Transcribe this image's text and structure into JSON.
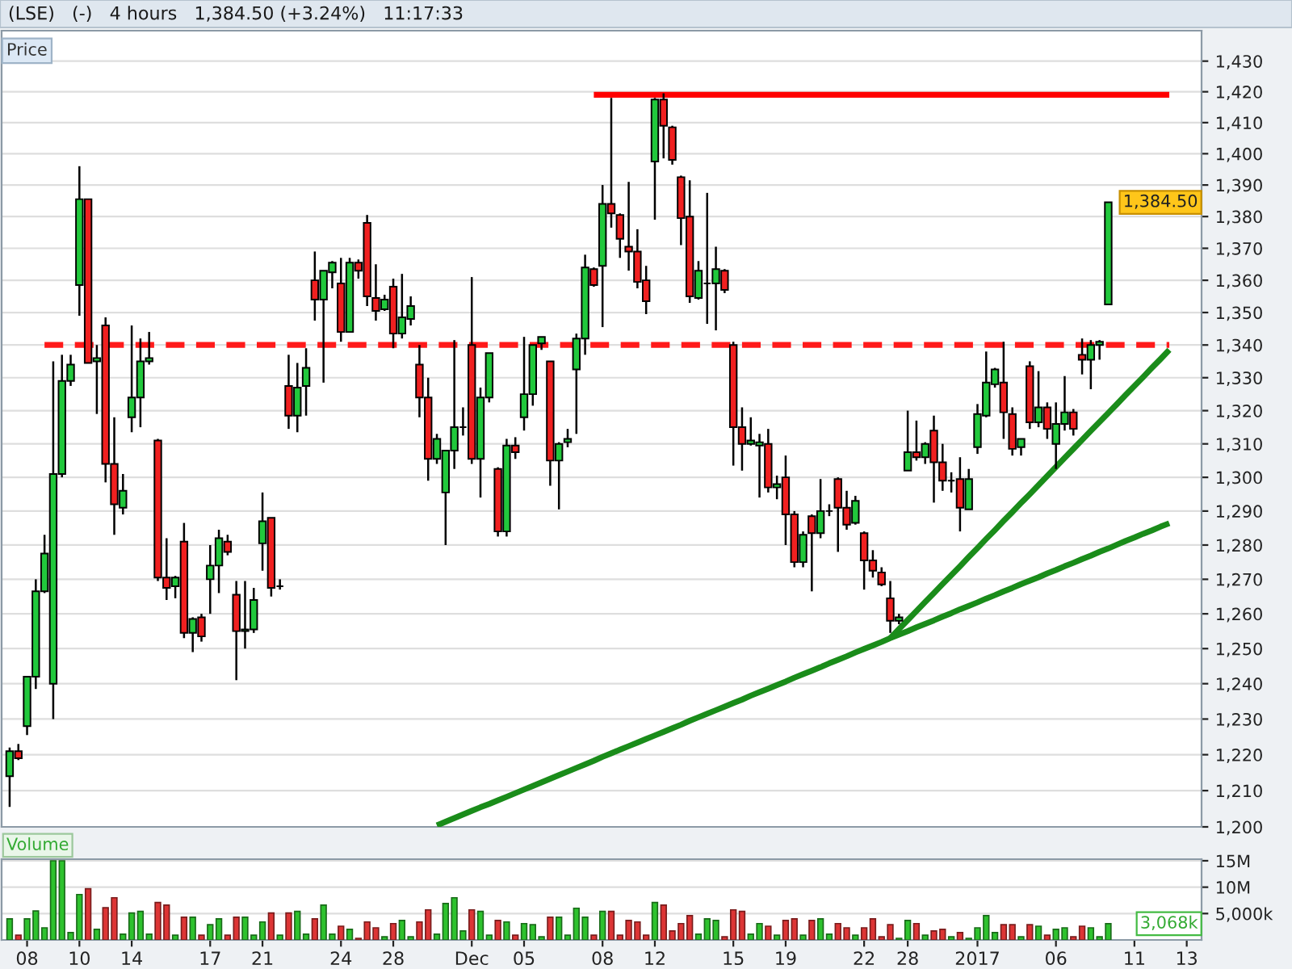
{
  "chart_data": [
    {
      "type": "candlestick",
      "title": "(LSE)   (-)   4 hours   1,384.50 (+3.24%)   11:17:33",
      "categories": [
        null,
        null,
        null,
        null,
        null,
        null,
        null,
        null,
        null,
        null,
        null,
        null,
        null,
        null,
        null,
        null,
        null,
        null,
        null,
        null,
        null,
        null,
        null,
        null,
        null,
        null,
        null,
        null,
        null,
        null,
        null,
        null,
        null,
        null,
        null,
        null,
        null,
        null,
        null,
        null,
        null,
        null,
        null,
        null,
        null,
        null,
        null,
        null,
        null,
        null,
        null,
        null,
        null,
        null,
        null,
        null,
        null,
        null,
        null,
        null,
        null,
        null,
        null,
        null,
        null,
        null,
        null,
        null,
        null,
        null,
        null,
        null,
        null,
        null,
        null,
        null,
        null,
        null,
        null,
        null,
        null,
        null,
        null,
        null,
        null,
        null,
        null,
        null,
        null,
        null,
        null,
        null,
        null,
        null,
        null,
        null,
        null,
        null,
        null,
        null,
        null,
        null,
        null,
        null,
        null,
        null,
        null,
        null,
        null,
        null,
        null,
        null,
        null,
        null,
        null,
        null,
        null,
        null,
        null,
        null,
        null,
        null,
        null,
        null,
        null,
        null,
        null,
        null,
        null,
        null,
        null,
        null,
        null,
        null,
        null,
        null,
        null
      ],
      "ohlc": [
        [
          1214,
          1222,
          1205.5,
          1221
        ],
        [
          1221,
          1223,
          1218.5,
          1219
        ],
        [
          1228,
          1242,
          1225.5,
          1242
        ],
        [
          1242,
          1270,
          1238.5,
          1266.5
        ],
        [
          1266.5,
          1283,
          1266,
          1277.5
        ],
        [
          1240,
          1335,
          1230,
          1301
        ],
        [
          1301,
          1337,
          1300,
          1329
        ],
        [
          1329,
          1337,
          1327.5,
          1334
        ],
        [
          1358.5,
          1396,
          1349,
          1385.5
        ],
        [
          1385.5,
          1385.5,
          1334.5,
          1334.5
        ],
        [
          1335,
          1340,
          1319,
          1336
        ],
        [
          1346,
          1348.5,
          1298.5,
          1304
        ],
        [
          1304,
          1318,
          1283,
          1292
        ],
        [
          1291,
          1301,
          1289,
          1296
        ],
        [
          1318,
          1346,
          1313.5,
          1324
        ],
        [
          1324,
          1342,
          1315,
          1335
        ],
        [
          1335,
          1344,
          1334,
          1336
        ],
        [
          1311,
          1311.5,
          1269.5,
          1270.5
        ],
        [
          1270.5,
          1282,
          1264,
          1267.5
        ],
        [
          1268,
          1271,
          1264.5,
          1270.5
        ],
        [
          1281,
          1286.5,
          1253,
          1254.5
        ],
        [
          1254.5,
          1259,
          1249,
          1258.5
        ],
        [
          1259,
          1260,
          1252,
          1253.5
        ],
        [
          1270,
          1280,
          1260,
          1274
        ],
        [
          1274,
          1284.5,
          1266,
          1282
        ],
        [
          1281,
          1283,
          1277,
          1278
        ],
        [
          1265.5,
          1269.5,
          1241,
          1255
        ],
        [
          1255,
          1269.5,
          1250,
          1255.5
        ],
        [
          1255.5,
          1267.5,
          1254.5,
          1264
        ],
        [
          1280.5,
          1295.5,
          1272.5,
          1287
        ],
        [
          1288,
          1288,
          1265,
          1267.5
        ],
        [
          1268,
          1270,
          1267,
          1268
        ],
        [
          1327.5,
          1337,
          1314.5,
          1318.5
        ],
        [
          1318.5,
          1334.5,
          1313.5,
          1327
        ],
        [
          1327.5,
          1339,
          1318.5,
          1333
        ],
        [
          1360,
          1369,
          1347.5,
          1354
        ],
        [
          1354,
          1363,
          1328.5,
          1363
        ],
        [
          1362.5,
          1366,
          1357.5,
          1365.5
        ],
        [
          1359,
          1367,
          1341,
          1344
        ],
        [
          1344,
          1367,
          1344,
          1365.5
        ],
        [
          1365.5,
          1366.5,
          1360.5,
          1363
        ],
        [
          1378,
          1380.5,
          1352,
          1355
        ],
        [
          1354.5,
          1365,
          1347.5,
          1350.5
        ],
        [
          1351,
          1355.5,
          1350.5,
          1354
        ],
        [
          1358,
          1360.5,
          1339,
          1343.5
        ],
        [
          1343.5,
          1362,
          1342,
          1348.5
        ],
        [
          1348,
          1355,
          1346,
          1352
        ],
        [
          1334,
          1340,
          1318,
          1324
        ],
        [
          1324,
          1330,
          1299,
          1305.5
        ],
        [
          1305.5,
          1313,
          1304,
          1311.5
        ],
        [
          1295.5,
          1308,
          1280,
          1308
        ],
        [
          1308,
          1341.5,
          1302.5,
          1315
        ],
        [
          1315,
          1321,
          1312.5,
          1315
        ],
        [
          1340,
          1361,
          1304,
          1305.5
        ],
        [
          1305.5,
          1327,
          1294,
          1324
        ],
        [
          1324,
          1337.5,
          1322.5,
          1337.5
        ],
        [
          1302.5,
          1303,
          1282.5,
          1284
        ],
        [
          1284,
          1311.5,
          1282.5,
          1309.5
        ],
        [
          1309.5,
          1312,
          1305.5,
          1307.5
        ],
        [
          1318,
          1342.5,
          1314,
          1325
        ],
        [
          1325,
          1340,
          1321.5,
          1340
        ],
        [
          1340.5,
          1342.5,
          1338.5,
          1342.5
        ],
        [
          1335,
          1335,
          1297.5,
          1305
        ],
        [
          1305,
          1310.5,
          1290.5,
          1310
        ],
        [
          1310.5,
          1314.5,
          1309,
          1311.5
        ],
        [
          1332.5,
          1343.5,
          1313,
          1342
        ],
        [
          1342,
          1368,
          1337,
          1364
        ],
        [
          1363.5,
          1364,
          1358,
          1358.5
        ],
        [
          1364.5,
          1390,
          1345.5,
          1384
        ],
        [
          1384,
          1418,
          1376.5,
          1381
        ],
        [
          1380.5,
          1381,
          1367,
          1373
        ],
        [
          1370.5,
          1391,
          1363,
          1369
        ],
        [
          1369,
          1376,
          1357.5,
          1359.5
        ],
        [
          1360,
          1364.5,
          1349.5,
          1353.5
        ],
        [
          1397.5,
          1418,
          1379,
          1417.5
        ],
        [
          1417.5,
          1419.5,
          1398.5,
          1409
        ],
        [
          1408.5,
          1409,
          1396.5,
          1398
        ],
        [
          1392.5,
          1393,
          1371,
          1379.5
        ],
        [
          1380,
          1391.5,
          1353,
          1355
        ],
        [
          1354.5,
          1366,
          1354,
          1363
        ],
        [
          1359,
          1387.5,
          1346.5,
          1359
        ],
        [
          1359,
          1370.5,
          1344.5,
          1363.5
        ],
        [
          1363,
          1363.5,
          1356,
          1357
        ],
        [
          1340,
          1341,
          1303.5,
          1315
        ],
        [
          1315,
          1321,
          1302,
          1310
        ],
        [
          1310,
          1318,
          1309.5,
          1311
        ],
        [
          1309.5,
          1313,
          1294,
          1310.5
        ],
        [
          1310,
          1314.5,
          1295.5,
          1297
        ],
        [
          1297,
          1300.5,
          1293.5,
          1298
        ],
        [
          1300,
          1306.5,
          1280,
          1289
        ],
        [
          1289,
          1290,
          1273.5,
          1275
        ],
        [
          1275,
          1284,
          1273.5,
          1283
        ],
        [
          1288.5,
          1289,
          1266.5,
          1283.5
        ],
        [
          1283.5,
          1299.5,
          1282,
          1290
        ],
        [
          1290,
          1292,
          1288.5,
          1290
        ],
        [
          1299.5,
          1300,
          1278,
          1291
        ],
        [
          1291,
          1296,
          1284.5,
          1286
        ],
        [
          1286.5,
          1294.5,
          1286,
          1293
        ],
        [
          1283.5,
          1284,
          1267,
          1275.5
        ],
        [
          1275.5,
          1278.5,
          1270.5,
          1272.5
        ],
        [
          1272,
          1273.5,
          1268,
          1268.5
        ],
        [
          1264.5,
          1269.5,
          1254.5,
          1258
        ],
        [
          1258,
          1260,
          1257,
          1259
        ],
        [
          1302,
          1320,
          1302,
          1307.5
        ],
        [
          1307.5,
          1317,
          1305,
          1306
        ],
        [
          1306,
          1310.5,
          1304,
          1310
        ],
        [
          1314,
          1318.5,
          1292.5,
          1304.5
        ],
        [
          1304.5,
          1310,
          1296,
          1299
        ],
        [
          1299,
          1301.5,
          1295.5,
          1299
        ],
        [
          1299.5,
          1306,
          1284,
          1291
        ],
        [
          1290.5,
          1302.5,
          1290.5,
          1299.5
        ],
        [
          1309,
          1322,
          1307,
          1319
        ],
        [
          1318.5,
          1338,
          1318,
          1328.5
        ],
        [
          1328,
          1333,
          1327,
          1332.5
        ],
        [
          1328.5,
          1341,
          1311.5,
          1319.5
        ],
        [
          1319,
          1321,
          1306.5,
          1308.5
        ],
        [
          1309,
          1311.5,
          1306.5,
          1311.5
        ],
        [
          1333.5,
          1335,
          1314.5,
          1316.5
        ],
        [
          1316.5,
          1332,
          1315,
          1321
        ],
        [
          1321,
          1322.5,
          1311.5,
          1314.5
        ],
        [
          1310,
          1322.5,
          1302.5,
          1316
        ],
        [
          1316,
          1330.5,
          1314,
          1319.5
        ],
        [
          1319.5,
          1320.5,
          1312.5,
          1314.5
        ],
        [
          1337,
          1342,
          1331,
          1335.5
        ],
        [
          1335.5,
          1341.5,
          1326.5,
          1340
        ],
        [
          1340,
          1341.5,
          1335.5,
          1341
        ],
        [
          1352.5,
          1384.5,
          1352.5,
          1384.5
        ],
        null,
        null,
        null,
        null,
        null,
        null,
        null,
        null,
        null,
        null
      ],
      "colors": [
        "#21c83c",
        "#f02020",
        "#21c83c",
        "#21c83c",
        "#21c83c",
        "#21c83c",
        "#21c83c",
        "#21c83c",
        "#21c83c",
        "#f02020",
        "#21c83c",
        "#f02020",
        "#f02020",
        "#21c83c",
        "#21c83c",
        "#21c83c",
        "#21c83c",
        "#f02020",
        "#f02020",
        "#21c83c",
        "#f02020",
        "#21c83c",
        "#f02020",
        "#21c83c",
        "#21c83c",
        "#f02020",
        "#f02020",
        "#21c83c",
        "#21c83c",
        "#21c83c",
        "#f02020",
        "#000000",
        "#f02020",
        "#21c83c",
        "#21c83c",
        "#f02020",
        "#21c83c",
        "#21c83c",
        "#f02020",
        "#21c83c",
        "#f02020",
        "#f02020",
        "#f02020",
        "#21c83c",
        "#f02020",
        "#21c83c",
        "#21c83c",
        "#f02020",
        "#f02020",
        "#21c83c",
        "#21c83c",
        "#21c83c",
        "#000000",
        "#f02020",
        "#21c83c",
        "#21c83c",
        "#f02020",
        "#21c83c",
        "#f02020",
        "#21c83c",
        "#21c83c",
        "#21c83c",
        "#f02020",
        "#21c83c",
        "#21c83c",
        "#21c83c",
        "#21c83c",
        "#f02020",
        "#21c83c",
        "#f02020",
        "#f02020",
        "#f02020",
        "#f02020",
        "#f02020",
        "#21c83c",
        "#f02020",
        "#f02020",
        "#f02020",
        "#f02020",
        "#21c83c",
        "#000000",
        "#21c83c",
        "#f02020",
        "#f02020",
        "#f02020",
        "#21c83c",
        "#21c83c",
        "#f02020",
        "#21c83c",
        "#f02020",
        "#f02020",
        "#21c83c",
        "#f02020",
        "#21c83c",
        "#000000",
        "#f02020",
        "#f02020",
        "#21c83c",
        "#f02020",
        "#f02020",
        "#f02020",
        "#f02020",
        "#21c83c",
        "#21c83c",
        "#f02020",
        "#21c83c",
        "#f02020",
        "#f02020",
        "#000000",
        "#f02020",
        "#21c83c",
        "#21c83c",
        "#21c83c",
        "#21c83c",
        "#f02020",
        "#f02020",
        "#21c83c",
        "#f02020",
        "#21c83c",
        "#f02020",
        "#21c83c",
        "#21c83c",
        "#f02020",
        "#f02020",
        "#21c83c",
        "#21c83c",
        "#21c83c",
        null,
        null,
        null,
        null,
        null,
        null,
        null,
        null,
        null,
        null
      ],
      "series": [
        {
          "type": "line",
          "color": "#ff0000",
          "line_style": "solid",
          "values": [
            null,
            null,
            null,
            null,
            null,
            null,
            null,
            null,
            null,
            null,
            null,
            null,
            null,
            null,
            null,
            null,
            null,
            null,
            null,
            null,
            null,
            null,
            null,
            null,
            null,
            null,
            null,
            null,
            null,
            null,
            null,
            null,
            null,
            null,
            null,
            null,
            null,
            null,
            null,
            null,
            null,
            null,
            null,
            null,
            null,
            null,
            null,
            null,
            null,
            null,
            null,
            null,
            null,
            null,
            null,
            null,
            null,
            null,
            null,
            null,
            null,
            null,
            null,
            null,
            null,
            null,
            null,
            1419,
            1419,
            1419,
            1419,
            1419,
            1419,
            1419,
            1419,
            1419,
            1419,
            1419,
            1419,
            1419,
            1419,
            1419,
            1419,
            1419,
            1419,
            1419,
            1419,
            1419,
            1419,
            1419,
            1419,
            1419,
            1419,
            1419,
            1419,
            1419,
            1419,
            1419,
            1419,
            1419,
            1419,
            1419,
            1419,
            1419,
            1419,
            1419,
            1419,
            1419,
            1419,
            1419,
            1419,
            1419,
            1419,
            1419,
            1419,
            1419,
            1419,
            1419,
            1419,
            1419,
            1419,
            1419,
            1419,
            1419,
            1419,
            1419,
            1419,
            1419,
            1419,
            1419,
            1419,
            1419,
            1419,
            1419,
            null,
            null,
            null
          ]
        },
        {
          "type": "line",
          "color": "#ff1a1a",
          "line_style": "dashed",
          "values": [
            null,
            null,
            null,
            null,
            1340,
            1340,
            1340,
            1340,
            1340,
            1340,
            1340,
            1340,
            1340,
            1340,
            1340,
            1340,
            1340,
            1340,
            1340,
            1340,
            1340,
            1340,
            1340,
            1340,
            1340,
            1340,
            1340,
            1340,
            1340,
            1340,
            1340,
            1340,
            1340,
            1340,
            1340,
            1340,
            1340,
            1340,
            1340,
            1340,
            1340,
            1340,
            1340,
            1340,
            1340,
            1340,
            1340,
            1340,
            1340,
            1340,
            1340,
            1340,
            1340,
            1340,
            1340,
            1340,
            1340,
            1340,
            1340,
            1340,
            1340,
            1340,
            1340,
            1340,
            1340,
            1340,
            1340,
            1340,
            1340,
            1340,
            1340,
            1340,
            1340,
            1340,
            1340,
            1340,
            1340,
            1340,
            1340,
            1340,
            1340,
            1340,
            1340,
            1340,
            1340,
            1340,
            1340,
            1340,
            1340,
            1340,
            1340,
            1340,
            1340,
            1340,
            1340,
            1340,
            1340,
            1340,
            1340,
            1340,
            1340,
            1340,
            1340,
            1340,
            1340,
            1340,
            1340,
            1340,
            1340,
            1340,
            1340,
            1340,
            1340,
            1340,
            1340,
            1340,
            1340,
            1340,
            1340,
            1340,
            1340,
            1340,
            1340,
            1340,
            1340,
            1340,
            1340,
            1340,
            1340,
            1340,
            1340,
            1340,
            1340,
            1340,
            null,
            null,
            null
          ]
        },
        {
          "type": "line",
          "color": "#1a8c1a",
          "line_style": "solid",
          "values": [
            null,
            null,
            null,
            null,
            null,
            null,
            null,
            null,
            null,
            null,
            null,
            null,
            null,
            null,
            null,
            null,
            null,
            null,
            null,
            null,
            null,
            null,
            null,
            null,
            null,
            null,
            null,
            null,
            null,
            null,
            null,
            null,
            null,
            null,
            null,
            null,
            null,
            null,
            null,
            null,
            null,
            null,
            null,
            null,
            null,
            null,
            null,
            null,
            null,
            1200.4,
            1201.4,
            1202.4,
            1203.4,
            1204.4,
            1205.4,
            1206.3,
            1207.3,
            1208.3,
            1209.3,
            1210.3,
            1211.3,
            1212.3,
            1213.3,
            1214.3,
            1215.3,
            1216.3,
            1217.3,
            1218.3,
            1219.4,
            1220.4,
            1221.4,
            1222.4,
            1223.4,
            1224.4,
            1225.4,
            1226.4,
            1227.4,
            1228.4,
            1229.5,
            1230.5,
            1231.5,
            1232.5,
            1233.5,
            1234.5,
            1235.5,
            1236.6,
            1237.6,
            1238.6,
            1239.6,
            1240.6,
            1241.7,
            1242.7,
            1243.7,
            1244.7,
            1245.8,
            1246.8,
            1247.8,
            1248.9,
            1249.9,
            1250.9,
            1251.9,
            1253.0,
            1254.0,
            1255.0,
            1256.1,
            1257.1,
            1258.1,
            1259.2,
            1260.2,
            1261.3,
            1262.3,
            1263.3,
            1264.4,
            1265.4,
            1266.5,
            1267.5,
            1268.6,
            1269.6,
            1270.6,
            1271.7,
            1272.7,
            1273.8,
            1274.8,
            1275.9,
            1276.9,
            1278.0,
            1279.0,
            1280.1,
            1281.2,
            1282.2,
            1283.3,
            1284.3,
            1285.4,
            1286.4,
            null,
            null,
            null
          ]
        },
        {
          "type": "line",
          "color": "#1a8c1a",
          "line_style": "solid",
          "values": [
            null,
            null,
            null,
            null,
            null,
            null,
            null,
            null,
            null,
            null,
            null,
            null,
            null,
            null,
            null,
            null,
            null,
            null,
            null,
            null,
            null,
            null,
            null,
            null,
            null,
            null,
            null,
            null,
            null,
            null,
            null,
            null,
            null,
            null,
            null,
            null,
            null,
            null,
            null,
            null,
            null,
            null,
            null,
            null,
            null,
            null,
            null,
            null,
            null,
            null,
            null,
            null,
            null,
            null,
            null,
            null,
            null,
            null,
            null,
            null,
            null,
            null,
            null,
            null,
            null,
            null,
            null,
            null,
            null,
            null,
            null,
            null,
            null,
            null,
            null,
            null,
            null,
            null,
            null,
            null,
            null,
            null,
            null,
            null,
            null,
            null,
            null,
            null,
            null,
            null,
            null,
            null,
            null,
            null,
            null,
            null,
            null,
            null,
            null,
            null,
            null,
            1253.0,
            1255.6,
            1258.2,
            1260.8,
            1263.4,
            1266.0,
            1268.6,
            1271.2,
            1273.8,
            1276.5,
            1279.1,
            1281.8,
            1284.4,
            1287.1,
            1289.7,
            1292.4,
            1295.0,
            1297.7,
            1300.4,
            1303.1,
            1305.8,
            1308.5,
            1311.2,
            1313.9,
            1316.6,
            1319.3,
            1322.0,
            1324.8,
            1327.5,
            1330.2,
            1333.0,
            1335.7,
            1338.5,
            null,
            null,
            null
          ]
        }
      ],
      "log": true,
      "ylim": [
        1200,
        1440
      ],
      "yticks": [
        {
          "value": 1200,
          "label": "1,200"
        },
        {
          "value": 1210,
          "label": "1,210"
        },
        {
          "value": 1220,
          "label": "1,220"
        },
        {
          "value": 1230,
          "label": "1,230"
        },
        {
          "value": 1240,
          "label": "1,240"
        },
        {
          "value": 1250,
          "label": "1,250"
        },
        {
          "value": 1260,
          "label": "1,260"
        },
        {
          "value": 1270,
          "label": "1,270"
        },
        {
          "value": 1280,
          "label": "1,280"
        },
        {
          "value": 1290,
          "label": "1,290"
        },
        {
          "value": 1300,
          "label": "1,300"
        },
        {
          "value": 1310,
          "label": "1,310"
        },
        {
          "value": 1320,
          "label": "1,320"
        },
        {
          "value": 1330,
          "label": "1,330"
        },
        {
          "value": 1340,
          "label": "1,340"
        },
        {
          "value": 1350,
          "label": "1,350"
        },
        {
          "value": 1360,
          "label": "1,360"
        },
        {
          "value": 1370,
          "label": "1,370"
        },
        {
          "value": 1380,
          "label": "1,380"
        },
        {
          "value": 1390,
          "label": "1,390"
        },
        {
          "value": 1400,
          "label": "1,400"
        },
        {
          "value": 1410,
          "label": "1,410"
        },
        {
          "value": 1420,
          "label": "1,420"
        },
        {
          "value": 1430,
          "label": "1,430"
        }
      ],
      "grid": "y",
      "tick_labels": "y",
      "annotations": [
        "Price",
        "1,384.50"
      ]
    },
    {
      "type": "bar",
      "categories": [
        null,
        null,
        "08",
        null,
        null,
        null,
        null,
        null,
        "10",
        null,
        null,
        null,
        null,
        null,
        "14",
        null,
        null,
        null,
        null,
        null,
        null,
        null,
        null,
        "17",
        null,
        null,
        null,
        null,
        null,
        "21",
        null,
        null,
        null,
        null,
        null,
        null,
        null,
        null,
        "24",
        null,
        null,
        null,
        null,
        null,
        "28",
        null,
        null,
        null,
        null,
        null,
        null,
        null,
        null,
        "Dec",
        null,
        null,
        null,
        null,
        null,
        "05",
        null,
        null,
        null,
        null,
        null,
        null,
        null,
        null,
        "08",
        null,
        null,
        null,
        null,
        null,
        "12",
        null,
        null,
        null,
        null,
        null,
        null,
        null,
        null,
        "15",
        null,
        null,
        null,
        null,
        null,
        "19",
        null,
        null,
        null,
        null,
        null,
        null,
        null,
        null,
        "22",
        null,
        null,
        null,
        null,
        "28",
        null,
        null,
        null,
        null,
        null,
        null,
        null,
        "2017",
        null,
        null,
        null,
        null,
        null,
        null,
        null,
        null,
        "06",
        null,
        null,
        null,
        null,
        null,
        null,
        null,
        null,
        "11",
        null,
        null,
        null,
        null,
        null,
        "13",
        null
      ],
      "values": [
        4000000,
        900000,
        4000000,
        5500000,
        2300000,
        15000000,
        15000000,
        1400000,
        8600000,
        9700000,
        2000000,
        6100000,
        8000000,
        1100000,
        5100000,
        5400000,
        1100000,
        7100000,
        6600000,
        900000,
        4300000,
        4300000,
        900000,
        2900000,
        4000000,
        900000,
        4300000,
        4300000,
        900000,
        3400000,
        5100000,
        900000,
        5100000,
        5400000,
        1100000,
        4000000,
        6600000,
        1100000,
        2600000,
        2000000,
        300000,
        3400000,
        2300000,
        600000,
        3100000,
        3700000,
        600000,
        3400000,
        5700000,
        1100000,
        6900000,
        8000000,
        1700000,
        5700000,
        5400000,
        900000,
        3700000,
        3400000,
        900000,
        3100000,
        2900000,
        600000,
        4300000,
        4300000,
        900000,
        6000000,
        4300000,
        900000,
        5400000,
        5400000,
        900000,
        3700000,
        3400000,
        900000,
        7100000,
        6600000,
        1700000,
        3100000,
        4600000,
        1100000,
        4000000,
        3700000,
        600000,
        5700000,
        5400000,
        1100000,
        3100000,
        2600000,
        900000,
        3700000,
        4000000,
        900000,
        3700000,
        4000000,
        1100000,
        3100000,
        2300000,
        900000,
        2300000,
        4000000,
        600000,
        2900000,
        300000,
        3700000,
        3100000,
        900000,
        1700000,
        2000000,
        600000,
        1400000,
        300000,
        2300000,
        4600000,
        1400000,
        2900000,
        2900000,
        600000,
        2900000,
        2600000,
        900000,
        2000000,
        2300000,
        600000,
        2600000,
        2300000,
        600000,
        3068000,
        null,
        null,
        null,
        null,
        null,
        null,
        null,
        null,
        null,
        null
      ],
      "colors": [
        "#2ec22e",
        "#dd3535",
        "#2ec22e",
        "#2ec22e",
        "#2ec22e",
        "#2ec22e",
        "#2ec22e",
        "#2ec22e",
        "#2ec22e",
        "#dd3535",
        "#2ec22e",
        "#dd3535",
        "#dd3535",
        "#2ec22e",
        "#2ec22e",
        "#2ec22e",
        "#2ec22e",
        "#dd3535",
        "#dd3535",
        "#2ec22e",
        "#dd3535",
        "#2ec22e",
        "#dd3535",
        "#2ec22e",
        "#2ec22e",
        "#dd3535",
        "#dd3535",
        "#2ec22e",
        "#2ec22e",
        "#2ec22e",
        "#dd3535",
        "#2ec22e",
        "#dd3535",
        "#2ec22e",
        "#2ec22e",
        "#dd3535",
        "#2ec22e",
        "#2ec22e",
        "#dd3535",
        "#2ec22e",
        "#dd3535",
        "#dd3535",
        "#dd3535",
        "#2ec22e",
        "#dd3535",
        "#2ec22e",
        "#2ec22e",
        "#dd3535",
        "#dd3535",
        "#2ec22e",
        "#2ec22e",
        "#2ec22e",
        "#2ec22e",
        "#dd3535",
        "#2ec22e",
        "#2ec22e",
        "#dd3535",
        "#2ec22e",
        "#dd3535",
        "#2ec22e",
        "#2ec22e",
        "#2ec22e",
        "#dd3535",
        "#2ec22e",
        "#2ec22e",
        "#2ec22e",
        "#2ec22e",
        "#dd3535",
        "#2ec22e",
        "#dd3535",
        "#dd3535",
        "#dd3535",
        "#dd3535",
        "#dd3535",
        "#2ec22e",
        "#dd3535",
        "#dd3535",
        "#dd3535",
        "#dd3535",
        "#2ec22e",
        "#2ec22e",
        "#2ec22e",
        "#dd3535",
        "#dd3535",
        "#dd3535",
        "#2ec22e",
        "#2ec22e",
        "#dd3535",
        "#2ec22e",
        "#dd3535",
        "#dd3535",
        "#2ec22e",
        "#dd3535",
        "#2ec22e",
        "#2ec22e",
        "#dd3535",
        "#dd3535",
        "#2ec22e",
        "#dd3535",
        "#dd3535",
        "#dd3535",
        "#dd3535",
        "#2ec22e",
        "#2ec22e",
        "#dd3535",
        "#2ec22e",
        "#dd3535",
        "#dd3535",
        "#2ec22e",
        "#dd3535",
        "#2ec22e",
        "#2ec22e",
        "#2ec22e",
        "#2ec22e",
        "#dd3535",
        "#dd3535",
        "#2ec22e",
        "#dd3535",
        "#2ec22e",
        "#dd3535",
        "#2ec22e",
        "#2ec22e",
        "#dd3535",
        "#dd3535",
        "#2ec22e",
        "#2ec22e",
        "#2ec22e",
        null,
        null,
        null,
        null,
        null,
        null,
        null,
        null,
        null,
        null
      ],
      "ylim": [
        0,
        15300000
      ],
      "yticks": [
        {
          "value": 5000000,
          "label": "5,000k"
        },
        {
          "value": 10000000,
          "label": "10M"
        },
        {
          "value": 15000000,
          "label": "15M"
        }
      ],
      "grid": "y",
      "annotations": [
        "Volume",
        "3,068k"
      ]
    }
  ]
}
